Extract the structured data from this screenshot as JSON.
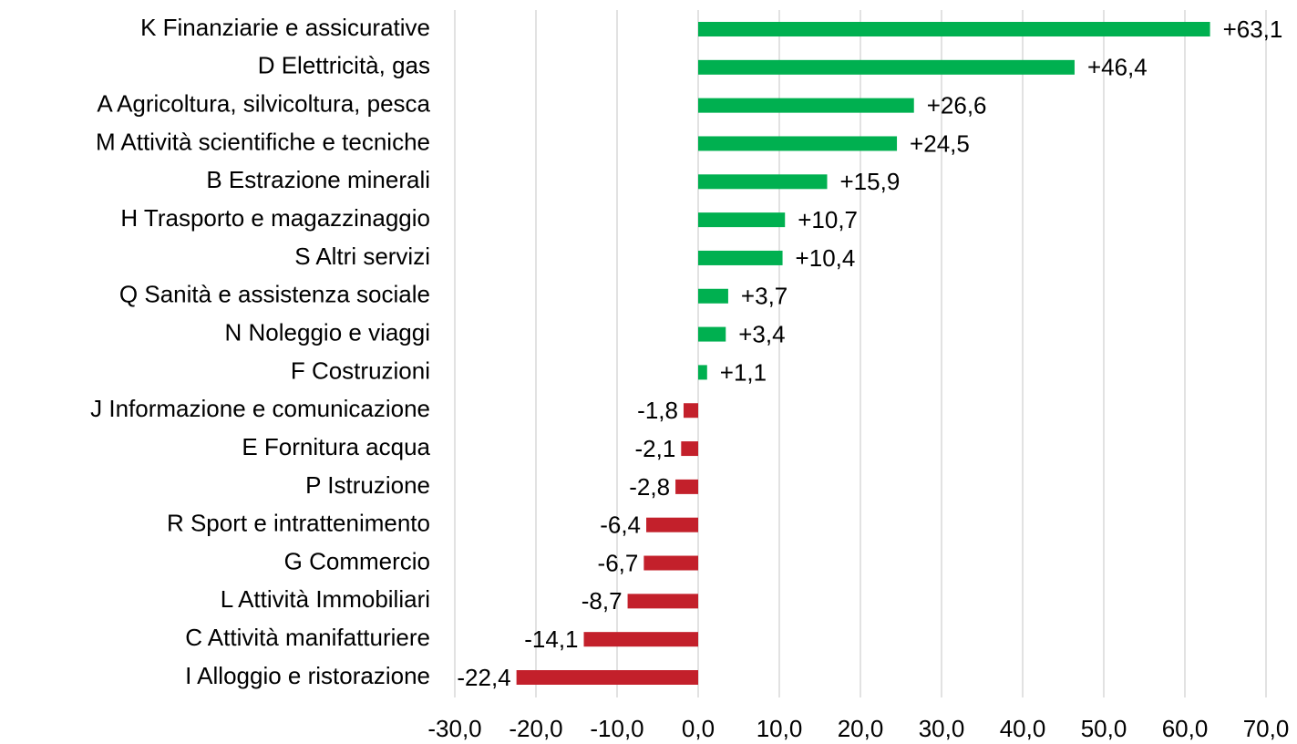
{
  "chart_data": {
    "type": "barh",
    "categories": [
      "K Finanziarie e assicurative",
      "D Elettricità, gas",
      "A Agricoltura, silvicoltura, pesca",
      "M Attività scientifiche e tecniche",
      "B Estrazione minerali",
      "H Trasporto e magazzinaggio",
      "S Altri servizi",
      "Q Sanità e assistenza sociale",
      "N Noleggio e viaggi",
      "F Costruzioni",
      "J Informazione e comunicazione",
      "E Fornitura acqua",
      "P Istruzione",
      "R Sport e intrattenimento",
      "G Commercio",
      "L Attività Immobiliari",
      "C Attività manifatturiere",
      "I Alloggio e ristorazione"
    ],
    "values": [
      63.1,
      46.4,
      26.6,
      24.5,
      15.9,
      10.7,
      10.4,
      3.7,
      3.4,
      1.1,
      -1.8,
      -2.1,
      -2.8,
      -6.4,
      -6.7,
      -8.7,
      -14.1,
      -22.4
    ],
    "value_labels": [
      "+63,1",
      "+46,4",
      "+26,6",
      "+24,5",
      "+15,9",
      "+10,7",
      "+10,4",
      "+3,7",
      "+3,4",
      "+1,1",
      "-1,8",
      "-2,1",
      "-2,8",
      "-6,4",
      "-6,7",
      "-8,7",
      "-14,1",
      "-22,4"
    ],
    "color_positive": "#00b050",
    "color_negative": "#c3202b",
    "xlim": [
      -30,
      70
    ],
    "xticks": [
      {
        "value": -30,
        "label": "-30,0"
      },
      {
        "value": -20,
        "label": "-20,0"
      },
      {
        "value": -10,
        "label": "-10,0"
      },
      {
        "value": 0,
        "label": "0,0"
      },
      {
        "value": 10,
        "label": "10,0"
      },
      {
        "value": 20,
        "label": "20,0"
      },
      {
        "value": 30,
        "label": "30,0"
      },
      {
        "value": 40,
        "label": "40,0"
      },
      {
        "value": 50,
        "label": "50,0"
      },
      {
        "value": 60,
        "label": "60,0"
      },
      {
        "value": 70,
        "label": "70,0"
      }
    ],
    "grid": true
  }
}
